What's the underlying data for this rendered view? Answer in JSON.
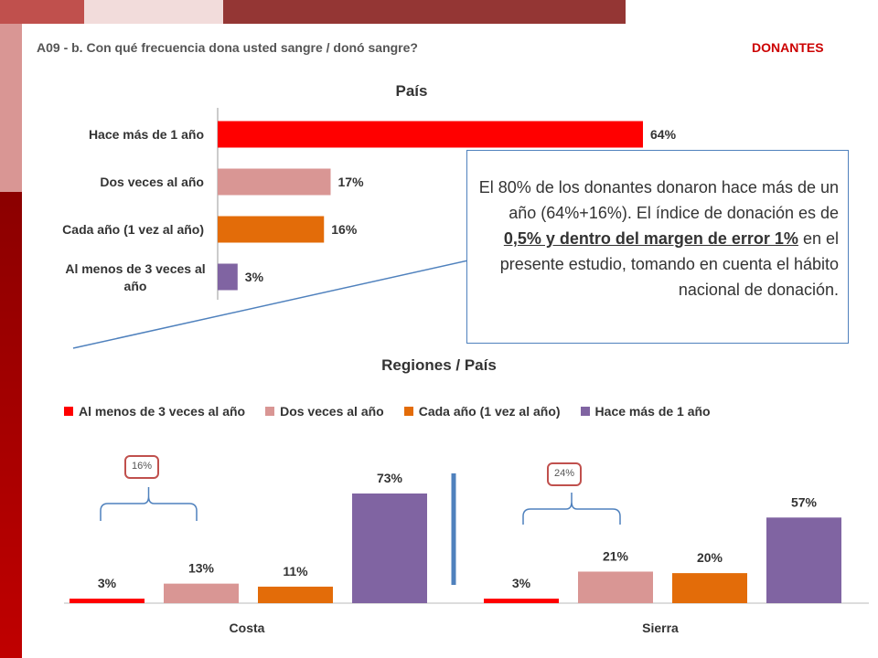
{
  "header": {
    "question": "A09 - b. Con qué frecuencia dona usted sangre  / donó sangre?",
    "segment": "DONANTES"
  },
  "callout": {
    "part1": "El 80% de los donantes donaron hace más de un año (64%+16%).  El índice de donación es de ",
    "highlight": "0,5%  y dentro del margen de error  1%",
    "part2": " en el presente estudio, tomando en cuenta el hábito nacional de donación."
  },
  "brackets": {
    "costa": "16%",
    "sierra": "24%"
  },
  "colors": {
    "red": "#ff0000",
    "pink": "#d99694",
    "orange": "#e36c09",
    "purple": "#8064a2",
    "divider": "#4f81bd"
  },
  "chart_data": [
    {
      "type": "bar",
      "orientation": "horizontal",
      "title": "País",
      "categories": [
        "Hace más de 1 año",
        "Dos veces al año",
        "Cada año (1 vez al año)",
        "Al menos de 3 veces al año"
      ],
      "values": [
        64,
        17,
        16,
        3
      ],
      "value_labels": [
        "64%",
        "17%",
        "16%",
        "3%"
      ],
      "colors": [
        "#ff0000",
        "#d99694",
        "#e36c09",
        "#8064a2"
      ],
      "xlim": [
        0,
        100
      ]
    },
    {
      "type": "bar",
      "title": "Regiones / País",
      "categories": [
        "Costa",
        "Sierra"
      ],
      "legend": "top",
      "series": [
        {
          "name": "Al menos de 3 veces al año",
          "values": [
            3,
            3
          ],
          "labels": [
            "3%",
            "3%"
          ],
          "color": "#ff0000"
        },
        {
          "name": "Dos veces al año",
          "values": [
            13,
            21
          ],
          "labels": [
            "13%",
            "21%"
          ],
          "color": "#d99694"
        },
        {
          "name": "Cada año (1 vez al año)",
          "values": [
            11,
            20
          ],
          "labels": [
            "11%",
            "20%"
          ],
          "color": "#e36c09"
        },
        {
          "name": "Hace más de 1 año",
          "values": [
            73,
            57
          ],
          "labels": [
            "73%",
            "57%"
          ],
          "color": "#8064a2"
        }
      ],
      "ylim": [
        0,
        100
      ]
    }
  ]
}
